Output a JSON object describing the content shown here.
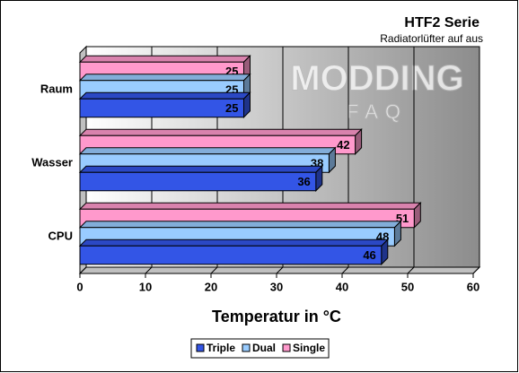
{
  "chart_data": {
    "type": "bar",
    "orientation": "horizontal",
    "title": "HTF2 Serie",
    "subtitle": "Radiatorlüfter auf aus",
    "watermark": [
      "MODDING",
      "FAQ"
    ],
    "x_label": "Temperatur in °C",
    "categories": [
      "Raum",
      "Wasser",
      "CPU"
    ],
    "series": [
      {
        "name": "Triple",
        "color": "#3355e6",
        "values": [
          25,
          36,
          46
        ]
      },
      {
        "name": "Dual",
        "color": "#99ccff",
        "values": [
          25,
          38,
          48
        ]
      },
      {
        "name": "Single",
        "color": "#ff99cc",
        "values": [
          25,
          42,
          51
        ]
      }
    ],
    "xlim": [
      0,
      60
    ],
    "xticks": [
      0,
      10,
      20,
      30,
      40,
      50,
      60
    ],
    "grid": true,
    "legend": "bottom"
  }
}
